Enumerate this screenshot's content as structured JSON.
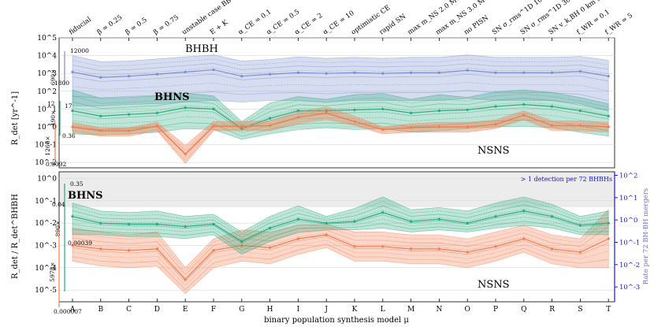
{
  "colors": {
    "BHBH": "#7b8fcc",
    "BHNS": "#2aa87f",
    "NSNS": "#f27b4f",
    "rate_axis": "#1a1adb",
    "shade": "#ececec"
  },
  "chart_data": [
    {
      "type": "area",
      "panel": "top",
      "ylabel": "R_det [yr^-1]",
      "yscale": "log",
      "ylim": [
        0.005,
        100000
      ],
      "yticks": [
        "10^-2",
        "10^-1",
        "10^0",
        "10^1",
        "10^2",
        "10^3",
        "10^4",
        "10^5"
      ],
      "top_category_labels": [
        "fiducial",
        "β = 0.25",
        "β = 0.5",
        "β = 0.75",
        "unstable case BB",
        "E + K",
        "α_CE = 0.1",
        "α_CE = 0.5",
        "α_CE = 2",
        "α_CE = 10",
        "optimistic CE",
        "rapid SN",
        "max m_NS 2.0 M⊙",
        "max m_NS 3.0 M⊙",
        "no PISN",
        "SN σ_rms^1D 100 km s^-1",
        "SN σ_rms^1D 30 km s^-1",
        "SN v_k,BH 0 km s^-1",
        "f_WR = 0.1",
        "f_WR = 5"
      ],
      "series_labels": [
        "BHBH",
        "BHNS",
        "NSNS"
      ],
      "series": [
        {
          "name": "BHBH",
          "upper": [
            10000,
            4500,
            5000,
            6500,
            8500,
            11000,
            5000,
            6000,
            8500,
            7000,
            8000,
            7000,
            8000,
            8000,
            11000,
            8000,
            8000,
            8000,
            9000,
            5500
          ],
          "lower": [
            15,
            15,
            18,
            20,
            25,
            30,
            25,
            30,
            30,
            25,
            30,
            30,
            30,
            30,
            40,
            30,
            30,
            30,
            20,
            8
          ],
          "median": [
            1200,
            600,
            700,
            900,
            1200,
            1600,
            700,
            900,
            1100,
            1000,
            1100,
            1000,
            1100,
            1100,
            1500,
            1100,
            1100,
            1100,
            1300,
            700
          ]
        },
        {
          "name": "BHNS",
          "upper": [
            120,
            40,
            45,
            55,
            80,
            55,
            2.0,
            22,
            50,
            35,
            65,
            75,
            35,
            65,
            45,
            95,
            120,
            85,
            45,
            20
          ],
          "lower": [
            0.4,
            0.35,
            0.4,
            0.5,
            0.8,
            0.7,
            0.2,
            0.4,
            0.7,
            0.9,
            0.7,
            0.8,
            0.5,
            0.6,
            0.8,
            1.0,
            1.1,
            0.9,
            0.5,
            0.3
          ],
          "median": [
            8,
            4,
            5,
            6,
            12,
            10,
            0.8,
            3,
            8,
            8,
            9,
            10,
            6,
            8,
            9,
            14,
            18,
            14,
            8,
            4
          ]
        },
        {
          "name": "NSNS",
          "upper": [
            1.8,
            0.9,
            0.9,
            1.8,
            0.09,
            2.0,
            2.0,
            2.2,
            7,
            13,
            4,
            1.0,
            1.5,
            1.8,
            1.8,
            2.5,
            8,
            2.2,
            2.2,
            1.8
          ],
          "lower": [
            0.5,
            0.3,
            0.3,
            0.6,
            0.009,
            0.6,
            0.6,
            0.6,
            1.5,
            2.5,
            1.2,
            0.4,
            0.5,
            0.5,
            0.5,
            0.8,
            2.5,
            0.6,
            0.6,
            0.5
          ],
          "median": [
            1.0,
            0.6,
            0.6,
            1.1,
            0.03,
            1.1,
            1.1,
            1.2,
            3.5,
            6,
            2,
            0.7,
            0.9,
            1.0,
            1.0,
            1.4,
            4.5,
            1.2,
            1.2,
            1.0
          ]
        }
      ],
      "annotations": {
        "bhbh_top": "12000",
        "bhbh_bot": "1800",
        "bhbh_factor": "690×",
        "bhns_top": "12",
        "bhns_bot": "17",
        "bhns_factor": "490×",
        "bhns_low": "0.36",
        "nsns_factor": "1266×",
        "nsns_low": "0.0092"
      }
    },
    {
      "type": "area",
      "panel": "bottom",
      "ylabel": "R_det / R_det^BHBH",
      "yscale": "log",
      "ylim": [
        3e-06,
        2
      ],
      "yticks": [
        "10^-5",
        "10^-4",
        "10^-3",
        "10^-2",
        "10^-1",
        "10^0"
      ],
      "right_ylabel": "Rate per 72 BH-BH mergers",
      "right_yticks": [
        "10^-3",
        "10^-2",
        "10^-1",
        "10^0",
        "10^1",
        "10^2"
      ],
      "xlabel": "binary population synthesis model μ",
      "categories": [
        "A",
        "B",
        "C",
        "D",
        "E",
        "F",
        "G",
        "H",
        "I",
        "J",
        "K",
        "L",
        "M",
        "N",
        "O",
        "P",
        "Q",
        "R",
        "S",
        "T"
      ],
      "shade_label": "> 1 detection per 72 BHBHs",
      "series": [
        {
          "name": "BHNS",
          "upper": [
            0.08,
            0.035,
            0.03,
            0.035,
            0.02,
            0.025,
            0.004,
            0.02,
            0.06,
            0.02,
            0.045,
            0.15,
            0.04,
            0.05,
            0.035,
            0.08,
            0.15,
            0.07,
            0.02,
            0.035
          ],
          "lower": [
            0.003,
            0.003,
            0.0025,
            0.0025,
            0.002,
            0.003,
            0.0004,
            0.0015,
            0.004,
            0.005,
            0.005,
            0.006,
            0.004,
            0.005,
            0.004,
            0.006,
            0.008,
            0.006,
            0.003,
            0.003
          ],
          "median": [
            0.02,
            0.01,
            0.009,
            0.009,
            0.007,
            0.009,
            0.0015,
            0.006,
            0.015,
            0.01,
            0.012,
            0.03,
            0.012,
            0.015,
            0.01,
            0.02,
            0.035,
            0.02,
            0.008,
            0.01
          ]
        },
        {
          "name": "NSNS",
          "upper": [
            0.006,
            0.004,
            0.003,
            0.004,
            0.0001,
            0.002,
            0.005,
            0.004,
            0.008,
            0.009,
            0.004,
            0.004,
            0.003,
            0.003,
            0.002,
            0.004,
            0.008,
            0.003,
            0.002,
            0.04
          ],
          "lower": [
            0.0002,
            0.00012,
            0.0001,
            0.00012,
            7e-06,
            0.0001,
            0.0002,
            0.00015,
            0.0004,
            0.0008,
            0.0002,
            0.0002,
            0.00015,
            0.00015,
            0.0001,
            0.0002,
            0.0005,
            0.00015,
            0.0001,
            0.0001
          ],
          "median": [
            0.001,
            0.0007,
            0.0006,
            0.0007,
            3e-05,
            0.0006,
            0.001,
            0.0008,
            0.002,
            0.003,
            0.0009,
            0.0009,
            0.0007,
            0.0007,
            0.0005,
            0.0009,
            0.002,
            0.0007,
            0.0005,
            0.002
          ]
        }
      ],
      "series_labels": [
        "BHNS",
        "NSNS"
      ],
      "annotations": {
        "bhns_top": "0.35",
        "bhns_mid": "0.04",
        "bhns_factor": "890×",
        "bhns_low": "0.00039",
        "nsns_factor": "5978×",
        "nsns_low": "0.000007"
      }
    }
  ]
}
